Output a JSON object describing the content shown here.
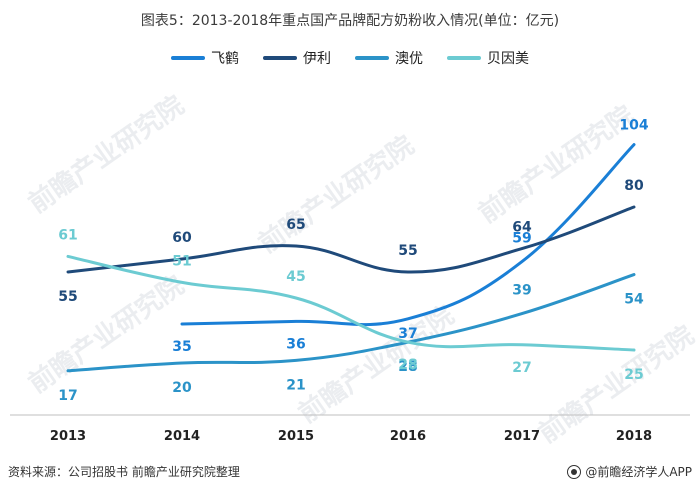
{
  "title": "图表5：2013-2018年重点国产品牌配方奶粉收入情况(单位：亿元)",
  "watermark": "前瞻产业研究院",
  "source": "资料来源：公司招股书 前瞻产业研究院整理",
  "credit": "@前瞻经济学人APP",
  "colors": {
    "feihe": "#1a7fd6",
    "yili": "#1f4a7a",
    "aoyou": "#2b93c8",
    "beinmei": "#6ccbd2"
  },
  "chart_data": {
    "type": "line",
    "title": "图表5：2013-2018年重点国产品牌配方奶粉收入情况(单位：亿元)",
    "x": [
      "2013",
      "2014",
      "2015",
      "2016",
      "2017",
      "2018"
    ],
    "ylabel": "",
    "xlabel": "",
    "ylim": [
      0,
      110
    ],
    "grid": false,
    "legend": "top",
    "series": [
      {
        "name": "飞鹤",
        "key": "feihe",
        "values": [
          null,
          35,
          36,
          37,
          59,
          104
        ]
      },
      {
        "name": "伊利",
        "key": "yili",
        "values": [
          55,
          60,
          65,
          55,
          64,
          80
        ]
      },
      {
        "name": "澳优",
        "key": "aoyou",
        "values": [
          17,
          20,
          21,
          28,
          39,
          54
        ]
      },
      {
        "name": "贝因美",
        "key": "beinmei",
        "values": [
          61,
          51,
          45,
          28,
          27,
          25
        ]
      }
    ],
    "labels": {
      "feihe": [
        "",
        "35",
        "36",
        "37",
        "59",
        "104"
      ],
      "yili": [
        "55",
        "60",
        "65",
        "55",
        "64",
        "80"
      ],
      "aoyou": [
        "17",
        "20",
        "21",
        "28",
        "39",
        "54"
      ],
      "beinmei": [
        "61",
        "51",
        "45",
        "28",
        "27",
        "25"
      ]
    }
  }
}
